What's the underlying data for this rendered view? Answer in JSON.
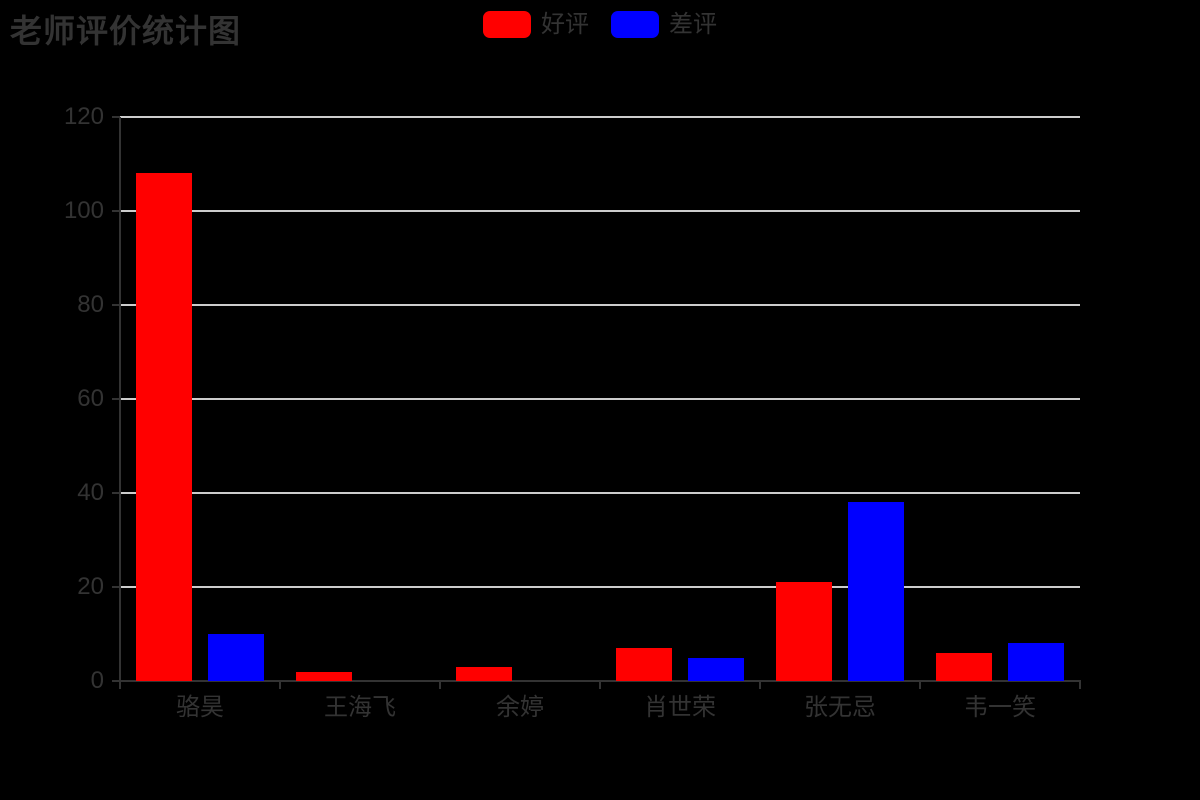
{
  "title": "老师评价统计图",
  "legend": {
    "items": [
      {
        "id": "positive",
        "label": "好评",
        "color": "#ff0000"
      },
      {
        "id": "negative",
        "label": "差评",
        "color": "#0000ff"
      }
    ]
  },
  "colors": {
    "background": "#000000",
    "text": "#333333",
    "axis": "#333333",
    "gridline": "#cccccc",
    "positive": "#ff0000",
    "negative": "#0000ff"
  },
  "chart_data": {
    "type": "bar",
    "title": "老师评价统计图",
    "categories": [
      "骆昊",
      "王海飞",
      "余婷",
      "肖世荣",
      "张无忌",
      "韦一笑"
    ],
    "series": [
      {
        "name": "好评",
        "color": "#ff0000",
        "values": [
          108,
          2,
          3,
          7,
          21,
          6
        ]
      },
      {
        "name": "差评",
        "color": "#0000ff",
        "values": [
          10,
          0,
          0,
          5,
          38,
          8
        ]
      }
    ],
    "xlabel": "",
    "ylabel": "",
    "ylim": [
      0,
      120
    ],
    "y_ticks": [
      0,
      20,
      40,
      60,
      80,
      100,
      120
    ],
    "grid": true,
    "legend_position": "top-center"
  }
}
